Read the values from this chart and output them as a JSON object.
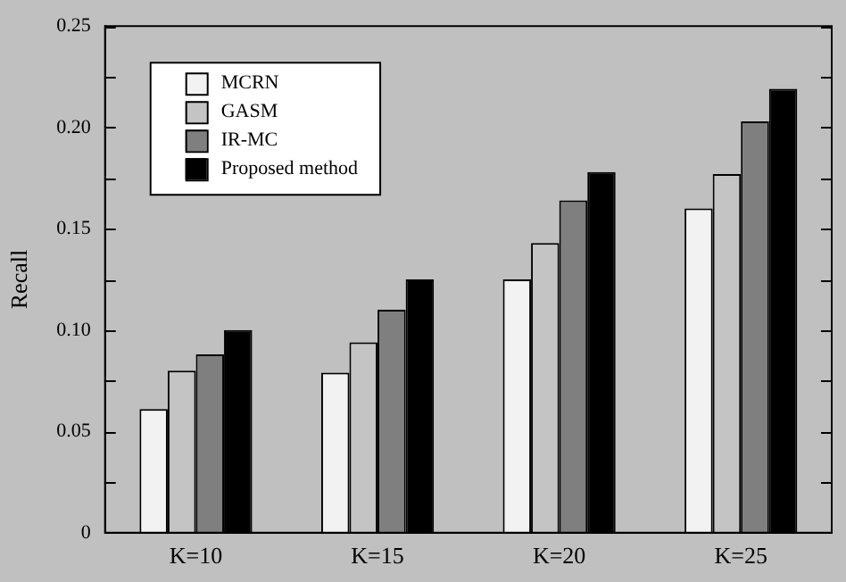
{
  "chart_data": {
    "type": "bar",
    "ylabel": "Recall",
    "categories": [
      "K=10",
      "K=15",
      "K=20",
      "K=25"
    ],
    "series": [
      {
        "name": "MCRN",
        "color": "#f2f2f2",
        "values": [
          0.061,
          0.079,
          0.125,
          0.16
        ]
      },
      {
        "name": "GASM",
        "color": "#c4c4c4",
        "values": [
          0.08,
          0.094,
          0.143,
          0.177
        ]
      },
      {
        "name": "IR-MC",
        "color": "#7f7f7f",
        "values": [
          0.088,
          0.11,
          0.164,
          0.203
        ]
      },
      {
        "name": "Proposed method",
        "color": "#000000",
        "values": [
          0.1,
          0.125,
          0.178,
          0.219
        ]
      }
    ],
    "ylim": [
      0,
      0.25
    ],
    "yticks": [
      {
        "value": 0,
        "label": "0"
      },
      {
        "value": 0.025,
        "label": null
      },
      {
        "value": 0.05,
        "label": "0.05"
      },
      {
        "value": 0.075,
        "label": null
      },
      {
        "value": 0.1,
        "label": "0.10"
      },
      {
        "value": 0.125,
        "label": null
      },
      {
        "value": 0.15,
        "label": "0.15"
      },
      {
        "value": 0.175,
        "label": null
      },
      {
        "value": 0.2,
        "label": "0.20"
      },
      {
        "value": 0.225,
        "label": null
      },
      {
        "value": 0.25,
        "label": "0.25"
      }
    ],
    "legend": "top left",
    "grid": false
  }
}
